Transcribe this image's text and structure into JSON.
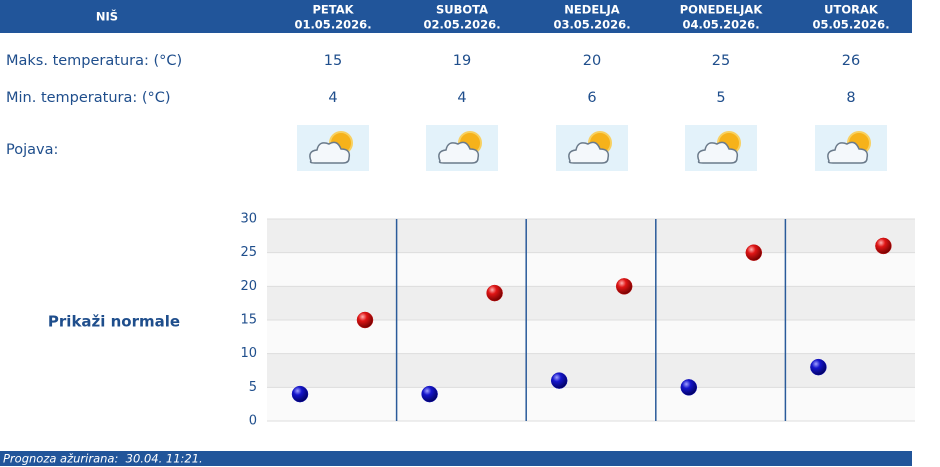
{
  "header": {
    "title": "NIŠ"
  },
  "days": [
    {
      "name": "PETAK",
      "date": "01.05.2026."
    },
    {
      "name": "SUBOTA",
      "date": "02.05.2026."
    },
    {
      "name": "NEDELJA",
      "date": "03.05.2026."
    },
    {
      "name": "PONEDELJAK",
      "date": "04.05.2026."
    },
    {
      "name": "UTORAK",
      "date": "05.05.2026."
    }
  ],
  "rows": {
    "max": {
      "label": "Maks. temperatura: (°C)",
      "values": [
        15,
        19,
        20,
        25,
        26
      ]
    },
    "min": {
      "label": "Min. temperatura: (°C)",
      "values": [
        4,
        4,
        6,
        5,
        8
      ]
    },
    "weather": {
      "label": "Pojava:"
    }
  },
  "chart": {
    "ylim": [
      0,
      30
    ],
    "yticks": [
      0,
      5,
      10,
      15,
      20,
      25,
      30
    ],
    "max_color": "#cc1111",
    "min_color": "#1111bb"
  },
  "link": "Prikaži normale",
  "footer": "Prognoza ažurirana:  30.04. 11:21."
}
